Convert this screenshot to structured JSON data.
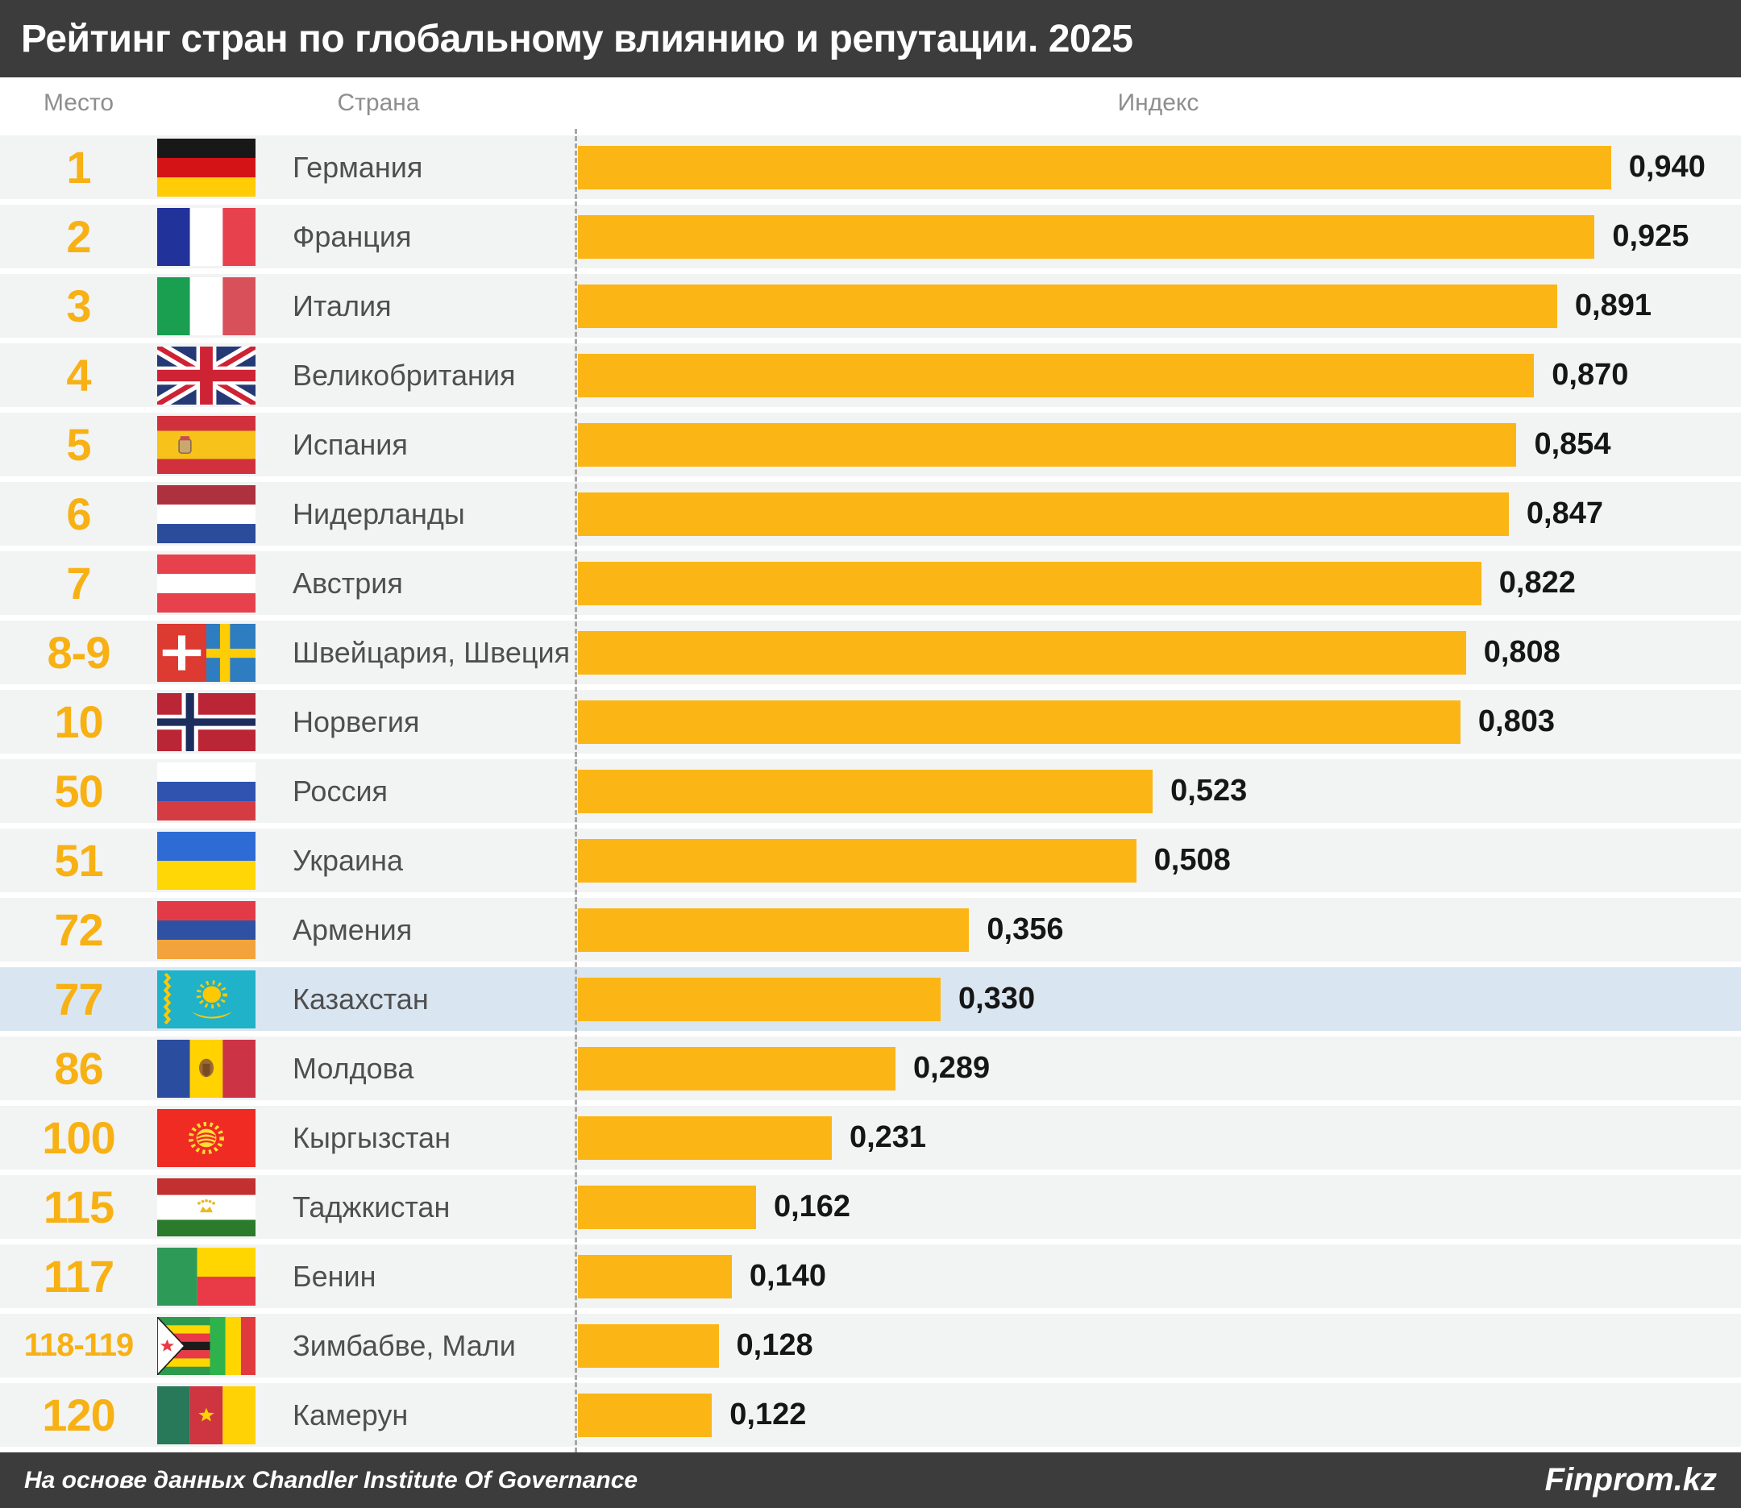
{
  "title": "Рейтинг стран по глобальному влиянию и репутации. 2025",
  "columns": {
    "rank": "Место",
    "country": "Страна",
    "index": "Индекс"
  },
  "footer": {
    "source": "На основе данных Chandler Institute Of Governance",
    "brand": "Finprom.kz"
  },
  "colors": {
    "bar": "#FBB616",
    "rank_text": "#F7B114",
    "header_bg": "#3C3C3C",
    "row_bg": "#F2F3F3",
    "highlight_row_bg": "#D9E6F1",
    "value_text": "#161616",
    "country_text": "#4F4F4F",
    "column_header_text": "#8E8E8E"
  },
  "rows": [
    {
      "rank": "1",
      "country": "Германия",
      "flag": "germany",
      "value": 0.94,
      "value_label": "0,940",
      "highlighted": false
    },
    {
      "rank": "2",
      "country": "Франция",
      "flag": "france",
      "value": 0.925,
      "value_label": "0,925",
      "highlighted": false
    },
    {
      "rank": "3",
      "country": "Италия",
      "flag": "italy",
      "value": 0.891,
      "value_label": "0,891",
      "highlighted": false
    },
    {
      "rank": "4",
      "country": "Великобритания",
      "flag": "uk",
      "value": 0.87,
      "value_label": "0,870",
      "highlighted": false
    },
    {
      "rank": "5",
      "country": "Испания",
      "flag": "spain",
      "value": 0.854,
      "value_label": "0,854",
      "highlighted": false
    },
    {
      "rank": "6",
      "country": "Нидерланды",
      "flag": "netherlands",
      "value": 0.847,
      "value_label": "0,847",
      "highlighted": false
    },
    {
      "rank": "7",
      "country": "Австрия",
      "flag": "austria",
      "value": 0.822,
      "value_label": "0,822",
      "highlighted": false
    },
    {
      "rank": "8-9",
      "country": "Швейцария, Швеция",
      "flag": "switzerland-sweden",
      "value": 0.808,
      "value_label": "0,808",
      "highlighted": false
    },
    {
      "rank": "10",
      "country": "Норвегия",
      "flag": "norway",
      "value": 0.803,
      "value_label": "0,803",
      "highlighted": false
    },
    {
      "rank": "50",
      "country": "Россия",
      "flag": "russia",
      "value": 0.523,
      "value_label": "0,523",
      "highlighted": false
    },
    {
      "rank": "51",
      "country": "Украина",
      "flag": "ukraine",
      "value": 0.508,
      "value_label": "0,508",
      "highlighted": false
    },
    {
      "rank": "72",
      "country": "Армения",
      "flag": "armenia",
      "value": 0.356,
      "value_label": "0,356",
      "highlighted": false
    },
    {
      "rank": "77",
      "country": "Казахстан",
      "flag": "kazakhstan",
      "value": 0.33,
      "value_label": "0,330",
      "highlighted": true
    },
    {
      "rank": "86",
      "country": "Молдова",
      "flag": "moldova",
      "value": 0.289,
      "value_label": "0,289",
      "highlighted": false
    },
    {
      "rank": "100",
      "country": "Кыргызстан",
      "flag": "kyrgyzstan",
      "value": 0.231,
      "value_label": "0,231",
      "highlighted": false
    },
    {
      "rank": "115",
      "country": "Таджкистан",
      "flag": "tajikistan",
      "value": 0.162,
      "value_label": "0,162",
      "highlighted": false
    },
    {
      "rank": "117",
      "country": "Бенин",
      "flag": "benin",
      "value": 0.14,
      "value_label": "0,140",
      "highlighted": false
    },
    {
      "rank": "118-119",
      "country": "Зимбабве, Мали",
      "flag": "zimbabwe-mali",
      "value": 0.128,
      "value_label": "0,128",
      "highlighted": false
    },
    {
      "rank": "120",
      "country": "Камерун",
      "flag": "cameroon",
      "value": 0.122,
      "value_label": "0,122",
      "highlighted": false
    }
  ],
  "chart_data": {
    "type": "bar",
    "orientation": "horizontal",
    "title": "Рейтинг стран по глобальному влиянию и репутации. 2025",
    "categories": [
      "Германия",
      "Франция",
      "Италия",
      "Великобритания",
      "Испания",
      "Нидерланды",
      "Австрия",
      "Швейцария, Швеция",
      "Норвегия",
      "Россия",
      "Украина",
      "Армения",
      "Казахстан",
      "Молдова",
      "Кыргызстан",
      "Таджкистан",
      "Бенин",
      "Зимбабве, Мали",
      "Камерун"
    ],
    "ranks": [
      "1",
      "2",
      "3",
      "4",
      "5",
      "6",
      "7",
      "8-9",
      "10",
      "50",
      "51",
      "72",
      "77",
      "86",
      "100",
      "115",
      "117",
      "118-119",
      "120"
    ],
    "values": [
      0.94,
      0.925,
      0.891,
      0.87,
      0.854,
      0.847,
      0.822,
      0.808,
      0.803,
      0.523,
      0.508,
      0.356,
      0.33,
      0.289,
      0.231,
      0.162,
      0.14,
      0.128,
      0.122
    ],
    "value_labels": [
      "0,940",
      "0,925",
      "0,891",
      "0,870",
      "0,854",
      "0,847",
      "0,822",
      "0,808",
      "0,803",
      "0,523",
      "0,508",
      "0,356",
      "0,330",
      "0,289",
      "0,231",
      "0,162",
      "0,140",
      "0,128",
      "0,122"
    ],
    "xlabel": "Индекс",
    "ylabel": "Место / Страна",
    "xlim": [
      0,
      1
    ],
    "grid": false,
    "legend": "none",
    "bar_color": "#FBB616",
    "highlight": {
      "category": "Казахстан",
      "index": 12,
      "color": "#D9E6F1"
    },
    "source": "На основе данных Chandler Institute Of Governance",
    "brand": "Finprom.kz"
  }
}
